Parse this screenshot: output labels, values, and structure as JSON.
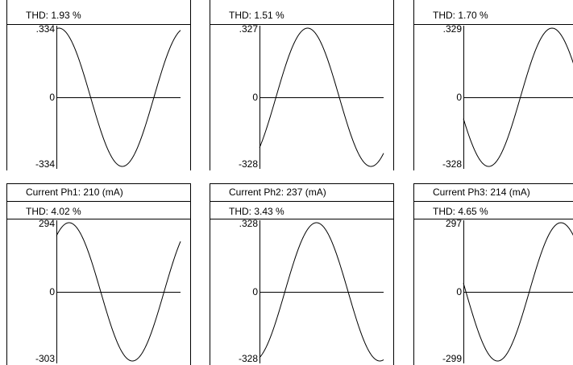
{
  "panels": [
    {
      "id": "voltage-ph1",
      "header": "",
      "thd": "THD:  1.93 %",
      "ymax": ".334",
      "yzero": "0",
      "ymin": "-334",
      "wave": {
        "peak_phase": 0.02,
        "cycles": 0.98,
        "amplitude": 0.334
      }
    },
    {
      "id": "voltage-ph2",
      "header": "",
      "thd": "THD:  1.51 %",
      "ymax": ".327",
      "yzero": "0",
      "ymin": "-328",
      "wave": {
        "peak_phase": 0.38,
        "cycles": 0.98,
        "amplitude": 0.327
      }
    },
    {
      "id": "voltage-ph3",
      "header": "",
      "thd": "THD:  1.70 %",
      "ymax": ".329",
      "yzero": "0",
      "ymin": "-328",
      "wave": {
        "peak_phase": 0.7,
        "cycles": 0.98,
        "amplitude": 0.329
      }
    },
    {
      "id": "current-ph1",
      "header": "Current Ph1: 210 (mA)",
      "thd": "THD:  4.02 %",
      "ymax": "294",
      "yzero": "0",
      "ymin": "-303",
      "wave": {
        "peak_phase": 0.1,
        "cycles": 0.98,
        "amplitude": 0.294
      }
    },
    {
      "id": "current-ph2",
      "header": "Current Ph2: 237 (mA)",
      "thd": "THD:  3.43 %",
      "ymax": ".328",
      "yzero": "0",
      "ymin": "-328",
      "wave": {
        "peak_phase": 0.45,
        "cycles": 0.98,
        "amplitude": 0.328
      }
    },
    {
      "id": "current-ph3",
      "header": "Current Ph3: 214 (mA)",
      "thd": "THD:  4.65 %",
      "ymax": "297",
      "yzero": "0",
      "ymin": "-299",
      "wave": {
        "peak_phase": 0.77,
        "cycles": 0.98,
        "amplitude": 0.297
      }
    }
  ]
}
